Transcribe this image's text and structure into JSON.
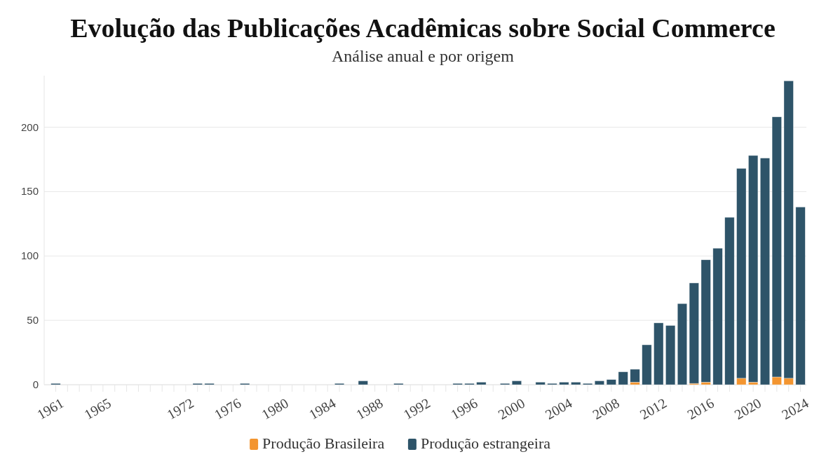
{
  "chart_data": {
    "type": "bar",
    "title": "Evolução das Publicações Acadêmicas sobre Social Commerce",
    "subtitle": "Análise anual e por origem",
    "categories": [
      "1961",
      null,
      null,
      null,
      "1965",
      null,
      null,
      null,
      null,
      null,
      null,
      "1972",
      null,
      null,
      null,
      "1976",
      null,
      null,
      null,
      "1980",
      null,
      null,
      null,
      "1984",
      null,
      null,
      null,
      "1988",
      null,
      null,
      null,
      "1992",
      null,
      null,
      null,
      "1996",
      null,
      null,
      null,
      "2000",
      null,
      null,
      null,
      "2004",
      null,
      null,
      null,
      "2008",
      null,
      null,
      null,
      "2012",
      null,
      null,
      null,
      "2016",
      null,
      null,
      null,
      "2020",
      null,
      null,
      null,
      "2024"
    ],
    "stacked": true,
    "series": [
      {
        "name": "Produção Brasileira",
        "color": "#f39530",
        "values": [
          null,
          null,
          null,
          null,
          null,
          null,
          null,
          null,
          null,
          null,
          null,
          null,
          null,
          null,
          null,
          null,
          null,
          null,
          null,
          null,
          null,
          null,
          null,
          null,
          null,
          null,
          null,
          null,
          null,
          null,
          null,
          null,
          null,
          null,
          null,
          null,
          null,
          null,
          null,
          null,
          null,
          null,
          null,
          null,
          null,
          null,
          null,
          null,
          null,
          2,
          null,
          null,
          null,
          null,
          1,
          2,
          null,
          null,
          5,
          2,
          null,
          6,
          5,
          null
        ]
      },
      {
        "name": "Produção estrangeira",
        "color": "#2e5469",
        "values": [
          1,
          null,
          null,
          null,
          null,
          null,
          null,
          null,
          null,
          null,
          null,
          null,
          1,
          1,
          null,
          null,
          1,
          null,
          null,
          null,
          null,
          null,
          null,
          null,
          1,
          null,
          3,
          null,
          null,
          1,
          null,
          null,
          null,
          null,
          1,
          1,
          2,
          null,
          1,
          3,
          null,
          2,
          1,
          2,
          2,
          1,
          3,
          4,
          10,
          10,
          31,
          48,
          46,
          63,
          78,
          95,
          106,
          130,
          163,
          176,
          176,
          202,
          231,
          138
        ]
      }
    ],
    "ylim": [
      0,
      240
    ],
    "yticks": [
      0,
      50,
      100,
      150,
      200
    ],
    "grid": "y",
    "legend": "bottom"
  }
}
